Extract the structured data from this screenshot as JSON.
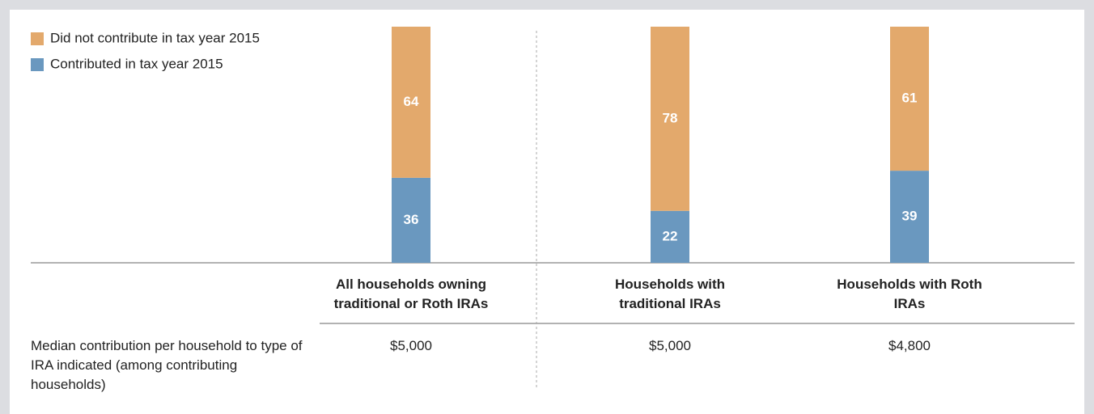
{
  "chart_data": {
    "type": "stacked_bar",
    "categories": [
      "All households owning traditional or Roth IRAs",
      "Households with traditional IRAs",
      "Households with Roth IRAs"
    ],
    "series": [
      {
        "name": "Contributed in tax year 2015",
        "color": "#6a98bf",
        "values": [
          36,
          22,
          39
        ]
      },
      {
        "name": "Did not contribute in tax year 2015",
        "color": "#e3a96c",
        "values": [
          64,
          78,
          61
        ]
      }
    ],
    "ylim": [
      0,
      100
    ],
    "row_label": "Median contribution per household to type of IRA indicated (among contributing households)",
    "row_values": [
      "$5,000",
      "$5,000",
      "$4,800"
    ]
  }
}
